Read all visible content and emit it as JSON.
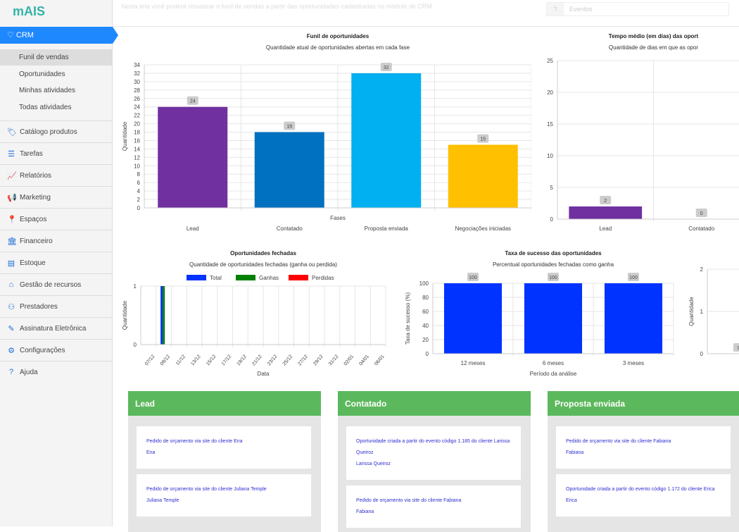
{
  "header": {
    "description": "Nesta tela você poderá visualizar o funil de vendas a partir das oportunidades cadastradas no módulo de CRM",
    "events_icon": "?",
    "events_label": "Eventos"
  },
  "sidebar": {
    "logo": "mAIS",
    "crm_label": "CRM",
    "crm_icon": "heart-icon",
    "sub_items": [
      "Funil de vendas",
      "Oportunidades",
      "Minhas atividades",
      "Todas atividades"
    ],
    "items": [
      {
        "label": "Catálogo produtos",
        "icon": "tag-icon",
        "glyph": "🏷"
      },
      {
        "label": "Tarefas",
        "icon": "tasks-icon",
        "glyph": "☰"
      },
      {
        "label": "Relatórios",
        "icon": "chart-icon",
        "glyph": "📈"
      },
      {
        "label": "Marketing",
        "icon": "megaphone-icon",
        "glyph": "📢"
      },
      {
        "label": "Espaços",
        "icon": "map-pin-icon",
        "glyph": "📍"
      },
      {
        "label": "Financeiro",
        "icon": "bank-icon",
        "glyph": "🏛"
      },
      {
        "label": "Estoque",
        "icon": "warehouse-icon",
        "glyph": "▤"
      },
      {
        "label": "Gestão de recursos",
        "icon": "resources-icon",
        "glyph": "⌂"
      },
      {
        "label": "Prestadores",
        "icon": "users-icon",
        "glyph": "⚇"
      },
      {
        "label": "Assinatura Eletrônica",
        "icon": "signature-icon",
        "glyph": "✎"
      },
      {
        "label": "Configurações",
        "icon": "gear-icon",
        "glyph": "⚙"
      },
      {
        "label": "Ajuda",
        "icon": "help-icon",
        "glyph": "?"
      }
    ]
  },
  "chart_data": [
    {
      "id": "funil",
      "type": "bar",
      "title": "Funil de oportunidades",
      "subtitle": "Quantidade atual de oportunidades abertas em cada fase",
      "xlabel": "Fases",
      "ylabel": "Quantidade",
      "ylim": [
        0,
        34
      ],
      "ystep": 2,
      "categories": [
        "Lead",
        "Contatado",
        "Proposta enviada",
        "Negociações iniciadas"
      ],
      "values": [
        24,
        18,
        32,
        15
      ],
      "colors": [
        "#7030a0",
        "#0070c0",
        "#00b0f0",
        "#ffc000"
      ],
      "grid": true
    },
    {
      "id": "tempo",
      "type": "bar",
      "title": "Tempo médio (em dias) das oport",
      "subtitle": "Quantidade de dias em que as opor",
      "ylim": [
        0,
        25
      ],
      "ystep": 5,
      "categories": [
        "Lead",
        "Contatado"
      ],
      "values": [
        2,
        0
      ],
      "colors": [
        "#7030a0",
        "#0070c0"
      ],
      "grid": true
    },
    {
      "id": "fechadas",
      "type": "bar",
      "title": "Oportunidades fechadas",
      "subtitle": "Quantidade de oportunidades fechadas (ganha ou perdida)",
      "xlabel": "Data",
      "ylabel": "Quantidade",
      "ylim": [
        0,
        1
      ],
      "ystep": 1,
      "legend_position": "top",
      "categories": [
        "07/12",
        "09/12",
        "11/12",
        "13/12",
        "15/12",
        "17/12",
        "19/12",
        "21/12",
        "23/12",
        "25/12",
        "27/12",
        "29/12",
        "31/12",
        "02/01",
        "04/01",
        "06/01"
      ],
      "series": [
        {
          "name": "Total",
          "color": "#0033ff",
          "values": [
            0,
            1,
            0,
            0,
            0,
            0,
            0,
            0,
            0,
            0,
            0,
            0,
            0,
            0,
            0,
            0
          ]
        },
        {
          "name": "Ganhas",
          "color": "#008000",
          "values": [
            0,
            1,
            0,
            0,
            0,
            0,
            0,
            0,
            0,
            0,
            0,
            0,
            0,
            0,
            0,
            0
          ]
        },
        {
          "name": "Perdidas",
          "color": "#ff0000",
          "values": [
            0,
            0,
            0,
            0,
            0,
            0,
            0,
            0,
            0,
            0,
            0,
            0,
            0,
            0,
            0,
            0
          ]
        }
      ],
      "grid": true
    },
    {
      "id": "taxa",
      "type": "bar",
      "title": "Taxa de sucesso das oportunidades",
      "subtitle": "Percentual oportunidades fechadas como ganha",
      "xlabel": "Período da análise",
      "ylabel": "Taxa de sucesso (%)",
      "ylim": [
        0,
        100
      ],
      "ystep": 20,
      "categories": [
        "12 meses",
        "6 meses",
        "3 meses"
      ],
      "values": [
        100,
        100,
        100
      ],
      "colors": [
        "#0033ff",
        "#0033ff",
        "#0033ff"
      ],
      "grid": true
    },
    {
      "id": "partial",
      "type": "bar",
      "ylabel": "Quantidade",
      "ylim": [
        0,
        2
      ],
      "ystep": 1,
      "categories": [
        ""
      ],
      "values": [
        0
      ],
      "colors": [
        "#0033ff"
      ],
      "grid": true
    }
  ],
  "kanban": [
    {
      "title": "Lead",
      "cards": [
        [
          "Pedido de orçamento via site do cliente Ena",
          "Ena"
        ],
        [
          "Pedido de orçamento via site do cliente Juliana Temple",
          "Juliana Temple"
        ]
      ]
    },
    {
      "title": "Contatado",
      "cards": [
        [
          "Oportunidade criada a partir do evento código 1.185 do cliente Larissa Queiroz",
          "Larissa Queiroz"
        ],
        [
          "Pedido de orçamento via site do cliente Fabiana",
          "Fabiana"
        ]
      ]
    },
    {
      "title": "Proposta enviada",
      "cards": [
        [
          "Pedido de orçamento via site do cliente Fabiana",
          "Fabiana"
        ],
        [
          "Oportunidade criada a partir do evento código 1.172 do cliente Erica",
          "Erica"
        ]
      ]
    }
  ]
}
